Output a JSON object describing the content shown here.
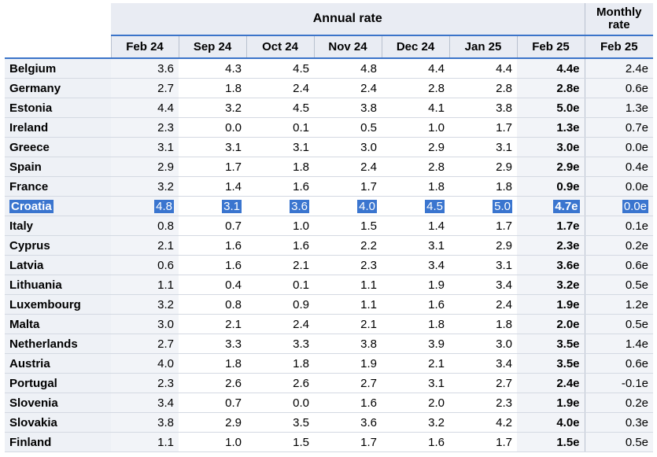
{
  "header": {
    "annual_rate": "Annual rate",
    "monthly_rate": [
      "Monthly",
      "rate"
    ],
    "columns": [
      "Feb 24",
      "Sep 24",
      "Oct 24",
      "Nov 24",
      "Dec 24",
      "Jan 25",
      "Feb 25",
      "Feb 25"
    ]
  },
  "highlight_color": "#3a75cf",
  "rows": [
    {
      "name": "Belgium",
      "values": [
        "3.6",
        "4.3",
        "4.5",
        "4.8",
        "4.4",
        "4.4",
        "4.4e",
        "2.4e"
      ]
    },
    {
      "name": "Germany",
      "values": [
        "2.7",
        "1.8",
        "2.4",
        "2.4",
        "2.8",
        "2.8",
        "2.8e",
        "0.6e"
      ]
    },
    {
      "name": "Estonia",
      "values": [
        "4.4",
        "3.2",
        "4.5",
        "3.8",
        "4.1",
        "3.8",
        "5.0e",
        "1.3e"
      ]
    },
    {
      "name": "Ireland",
      "values": [
        "2.3",
        "0.0",
        "0.1",
        "0.5",
        "1.0",
        "1.7",
        "1.3e",
        "0.7e"
      ]
    },
    {
      "name": "Greece",
      "values": [
        "3.1",
        "3.1",
        "3.1",
        "3.0",
        "2.9",
        "3.1",
        "3.0e",
        "0.0e"
      ]
    },
    {
      "name": "Spain",
      "values": [
        "2.9",
        "1.7",
        "1.8",
        "2.4",
        "2.8",
        "2.9",
        "2.9e",
        "0.4e"
      ]
    },
    {
      "name": "France",
      "values": [
        "3.2",
        "1.4",
        "1.6",
        "1.7",
        "1.8",
        "1.8",
        "0.9e",
        "0.0e"
      ]
    },
    {
      "name": "Croatia",
      "values": [
        "4.8",
        "3.1",
        "3.6",
        "4.0",
        "4.5",
        "5.0",
        "4.7e",
        "0.0e"
      ],
      "selected": true
    },
    {
      "name": "Italy",
      "values": [
        "0.8",
        "0.7",
        "1.0",
        "1.5",
        "1.4",
        "1.7",
        "1.7e",
        "0.1e"
      ]
    },
    {
      "name": "Cyprus",
      "values": [
        "2.1",
        "1.6",
        "1.6",
        "2.2",
        "3.1",
        "2.9",
        "2.3e",
        "0.2e"
      ]
    },
    {
      "name": "Latvia",
      "values": [
        "0.6",
        "1.6",
        "2.1",
        "2.3",
        "3.4",
        "3.1",
        "3.6e",
        "0.6e"
      ]
    },
    {
      "name": "Lithuania",
      "values": [
        "1.1",
        "0.4",
        "0.1",
        "1.1",
        "1.9",
        "3.4",
        "3.2e",
        "0.5e"
      ]
    },
    {
      "name": "Luxembourg",
      "values": [
        "3.2",
        "0.8",
        "0.9",
        "1.1",
        "1.6",
        "2.4",
        "1.9e",
        "1.2e"
      ]
    },
    {
      "name": "Malta",
      "values": [
        "3.0",
        "2.1",
        "2.4",
        "2.1",
        "1.8",
        "1.8",
        "2.0e",
        "0.5e"
      ]
    },
    {
      "name": "Netherlands",
      "values": [
        "2.7",
        "3.3",
        "3.3",
        "3.8",
        "3.9",
        "3.0",
        "3.5e",
        "1.4e"
      ]
    },
    {
      "name": "Austria",
      "values": [
        "4.0",
        "1.8",
        "1.8",
        "1.9",
        "2.1",
        "3.4",
        "3.5e",
        "0.6e"
      ]
    },
    {
      "name": "Portugal",
      "values": [
        "2.3",
        "2.6",
        "2.6",
        "2.7",
        "3.1",
        "2.7",
        "2.4e",
        "-0.1e"
      ]
    },
    {
      "name": "Slovenia",
      "values": [
        "3.4",
        "0.7",
        "0.0",
        "1.6",
        "2.0",
        "2.3",
        "1.9e",
        "0.2e"
      ]
    },
    {
      "name": "Slovakia",
      "values": [
        "3.8",
        "2.9",
        "3.5",
        "3.6",
        "3.2",
        "4.2",
        "4.0e",
        "0.3e"
      ]
    },
    {
      "name": "Finland",
      "values": [
        "1.1",
        "1.0",
        "1.5",
        "1.7",
        "1.6",
        "1.7",
        "1.5e",
        "0.5e"
      ]
    }
  ]
}
